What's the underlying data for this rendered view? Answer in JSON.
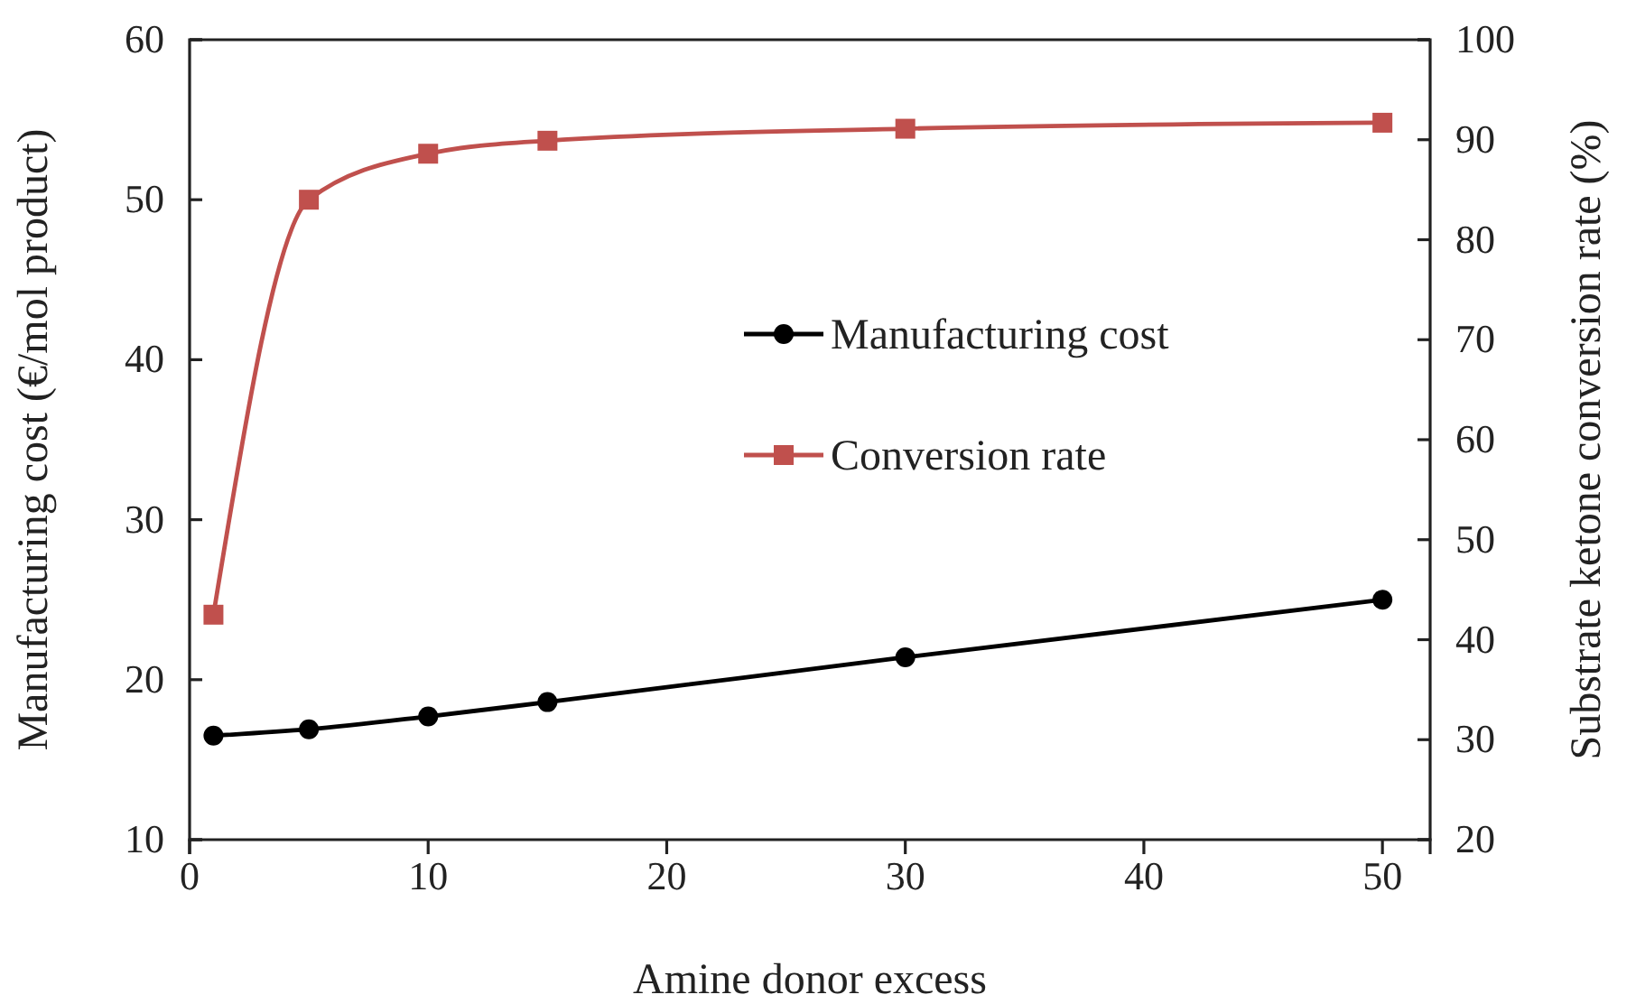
{
  "chart_data": {
    "type": "line",
    "xlabel": "Amine donor excess",
    "ylabel": "Manufacturing cost (€/mol product)",
    "y2label": "Substrate ketone conversion rate (%)",
    "x": [
      1,
      5,
      10,
      15,
      30,
      50
    ],
    "series": [
      {
        "name": "Manufacturing cost",
        "color": "#000000",
        "marker": "circle",
        "values": [
          16.5,
          16.9,
          17.7,
          18.6,
          21.4,
          25.0
        ]
      },
      {
        "name": "Conversion rate",
        "color": "#c0504d",
        "marker": "square",
        "axis": "y2",
        "values": [
          42.5,
          84.0,
          88.6,
          89.9,
          91.1,
          91.7
        ]
      }
    ],
    "xlim": [
      0,
      52
    ],
    "xticks": [
      0,
      10,
      20,
      30,
      40,
      50
    ],
    "ylim": [
      10,
      60
    ],
    "yticks": [
      10,
      20,
      30,
      40,
      50,
      60
    ],
    "y2lim": [
      20,
      100
    ],
    "y2ticks": [
      20,
      30,
      40,
      50,
      60,
      70,
      80,
      90,
      100
    ],
    "grid": false,
    "legend": "right",
    "line_style": "solid"
  }
}
